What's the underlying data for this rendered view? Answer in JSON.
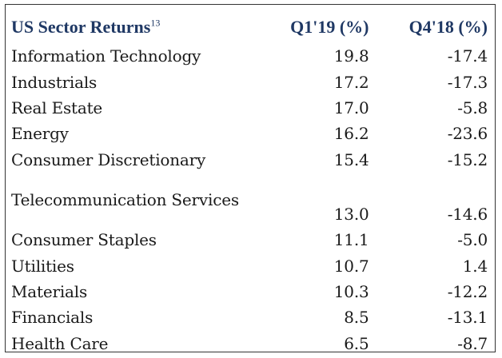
{
  "table": {
    "title": "US Sector Returns",
    "title_superscript": "13",
    "headers": [
      "Q1'19 (%)",
      "Q4'18 (%)"
    ],
    "rows": [
      {
        "sector": "Information Technology",
        "q1_19": "19.8",
        "q4_18": "-17.4"
      },
      {
        "sector": "Industrials",
        "q1_19": "17.2",
        "q4_18": "-17.3"
      },
      {
        "sector": "Real Estate",
        "q1_19": "17.0",
        "q4_18": "-5.8"
      },
      {
        "sector": "Energy",
        "q1_19": "16.2",
        "q4_18": "-23.6"
      },
      {
        "sector": "Consumer Discretionary",
        "q1_19": "15.4",
        "q4_18": "-15.2"
      },
      {
        "sector": "Telecommunication Services",
        "q1_19": "13.0",
        "q4_18": "-14.6"
      },
      {
        "sector": "Consumer Staples",
        "q1_19": "11.1",
        "q4_18": "-5.0"
      },
      {
        "sector": "Utilities",
        "q1_19": "10.7",
        "q4_18": "1.4"
      },
      {
        "sector": "Materials",
        "q1_19": "10.3",
        "q4_18": "-12.2"
      },
      {
        "sector": "Financials",
        "q1_19": "8.5",
        "q4_18": "-13.1"
      },
      {
        "sector": "Health Care",
        "q1_19": "6.5",
        "q4_18": "-8.7"
      }
    ]
  },
  "colors": {
    "header_text": "#1f3864",
    "body_text": "#1a1a1a",
    "border": "#333333"
  }
}
